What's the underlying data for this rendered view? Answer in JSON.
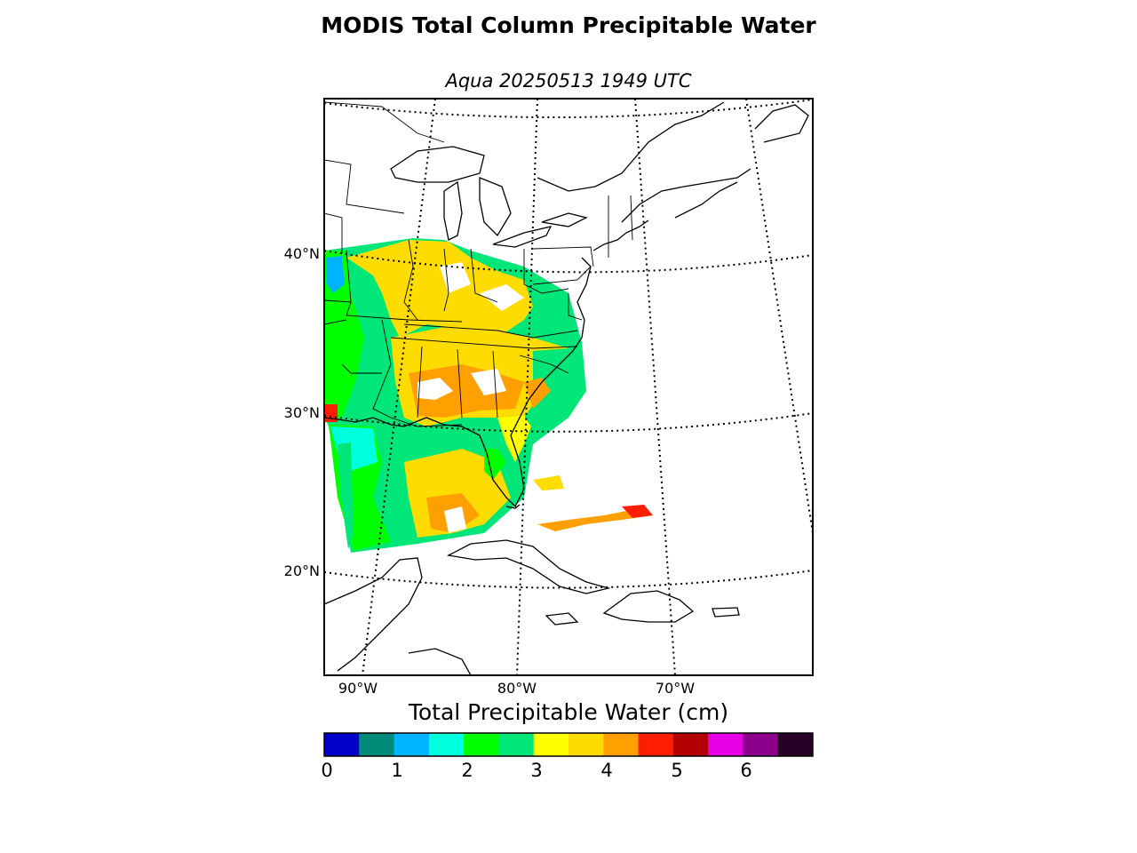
{
  "title": "MODIS Total Column Precipitable Water",
  "subtitle": "Aqua 20250513 1949 UTC",
  "lat_labels": [
    "40°N",
    "30°N",
    "20°N"
  ],
  "lon_labels": [
    "90°W",
    "80°W",
    "70°W"
  ],
  "colorbar": {
    "title": "Total Precipitable Water (cm)",
    "ticks": [
      "0",
      "1",
      "2",
      "3",
      "4",
      "5",
      "6"
    ],
    "colors": [
      "#0000c8",
      "#008c78",
      "#00b4ff",
      "#00ffdc",
      "#00ff00",
      "#00e678",
      "#ffff00",
      "#ffdc00",
      "#ffa000",
      "#ff1e00",
      "#b40000",
      "#e600e6",
      "#8c008c",
      "#280028"
    ]
  }
}
